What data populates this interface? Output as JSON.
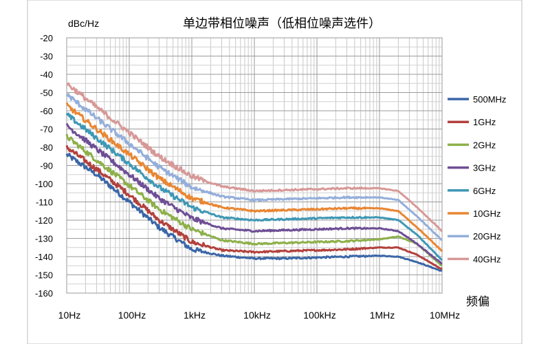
{
  "chart_data": {
    "type": "line",
    "title": "单边带相位噪声（低相位噪声选件）",
    "ylabel": "dBc/Hz",
    "xlabel": "频偏",
    "x_scale": "log",
    "xlim": [
      10,
      10000000
    ],
    "ylim": [
      -160,
      -20
    ],
    "x_ticks": [
      {
        "value": 10,
        "label": "10Hz"
      },
      {
        "value": 100,
        "label": "100Hz"
      },
      {
        "value": 1000,
        "label": "1kHz"
      },
      {
        "value": 10000,
        "label": "10kHz"
      },
      {
        "value": 100000,
        "label": "100kHz"
      },
      {
        "value": 1000000,
        "label": "1MHz"
      },
      {
        "value": 10000000,
        "label": "10MHz"
      }
    ],
    "y_ticks": [
      -20,
      -30,
      -40,
      -50,
      -60,
      -70,
      -80,
      -90,
      -100,
      -110,
      -120,
      -130,
      -140,
      -150,
      -160
    ],
    "grid": true,
    "legend_position": "right",
    "x": [
      10,
      30,
      100,
      300,
      1000,
      3000,
      10000,
      30000,
      100000,
      300000,
      1000000,
      2000000,
      4000000,
      10000000
    ],
    "series": [
      {
        "name": "500MHz",
        "color": "#3A66A7",
        "values": [
          -84,
          -95,
          -110,
          -124,
          -136,
          -139.5,
          -141,
          -141,
          -140.5,
          -140,
          -139.5,
          -140,
          -143,
          -148
        ]
      },
      {
        "name": "1GHz",
        "color": "#B3403C",
        "values": [
          -80,
          -92,
          -106,
          -120,
          -132,
          -136.5,
          -137.5,
          -137,
          -136.5,
          -136,
          -135,
          -135,
          -139,
          -147
        ]
      },
      {
        "name": "2GHz",
        "color": "#8DB049",
        "values": [
          -74,
          -87,
          -101,
          -114,
          -125,
          -131,
          -133,
          -132.5,
          -132,
          -131.5,
          -130.5,
          -129,
          -133,
          -145
        ]
      },
      {
        "name": "3GHz",
        "color": "#6E4E95",
        "values": [
          -68,
          -81,
          -95,
          -108,
          -119,
          -124.5,
          -126,
          -125.5,
          -125,
          -124.5,
          -124.5,
          -126,
          -133,
          -144
        ]
      },
      {
        "name": "6GHz",
        "color": "#3E98B5",
        "values": [
          -62,
          -75,
          -89,
          -102,
          -113,
          -118.5,
          -120,
          -119.5,
          -119,
          -118.5,
          -118.5,
          -120,
          -128,
          -142
        ]
      },
      {
        "name": "10GHz",
        "color": "#E98631",
        "values": [
          -57,
          -70,
          -84,
          -97,
          -108,
          -113,
          -115,
          -114.5,
          -114,
          -113.5,
          -113.5,
          -115,
          -124,
          -137
        ]
      },
      {
        "name": "20GHz",
        "color": "#94AEDA",
        "values": [
          -51,
          -64,
          -78,
          -91,
          -102,
          -107,
          -109,
          -108.5,
          -108,
          -107.5,
          -107.5,
          -109,
          -118,
          -131
        ]
      },
      {
        "name": "40GHz",
        "color": "#D79897",
        "values": [
          -45,
          -58,
          -72,
          -85,
          -96,
          -101.5,
          -104,
          -103.5,
          -103,
          -102.5,
          -102.5,
          -104,
          -113,
          -126
        ]
      }
    ]
  }
}
